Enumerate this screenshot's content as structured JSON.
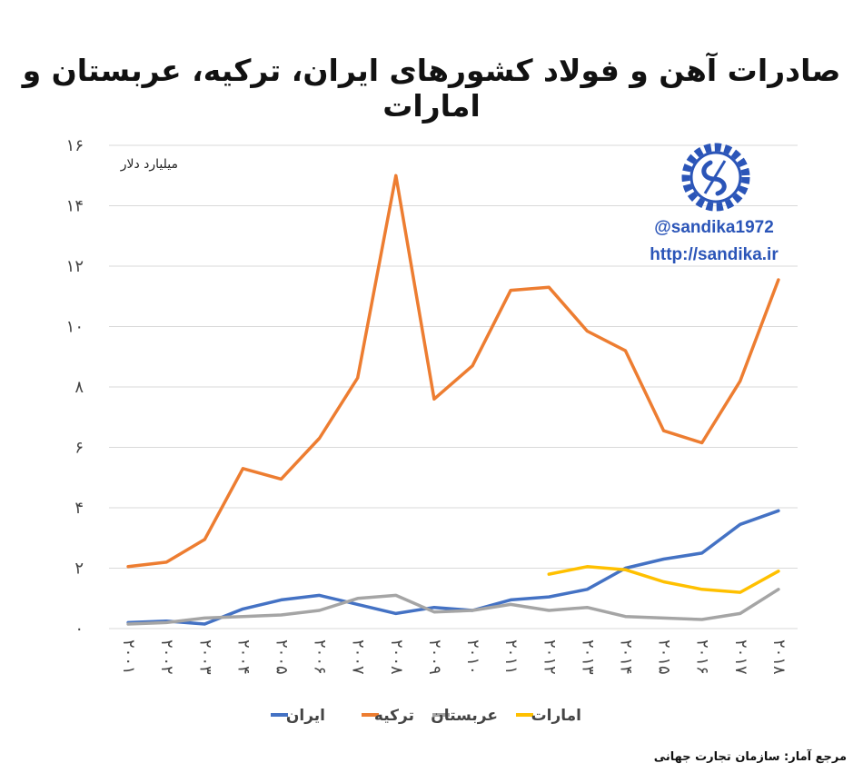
{
  "title": "صادرات آهن و فولاد کشورهای ایران، ترکیه، عربستان و امارات",
  "source": "مرجع آمار: سازمان تجارت جهانی",
  "watermark": {
    "handle": "@sandika1972",
    "url": "http://sandika.ir",
    "logo_icon": "sandika-logo-icon",
    "color": "#2b55b8"
  },
  "chart_data": {
    "type": "line",
    "ylabel": "میلیارد دلار",
    "ylim": [
      0,
      16
    ],
    "yticks": [
      0,
      2,
      4,
      6,
      8,
      10,
      12,
      14,
      16
    ],
    "ytick_labels": [
      "۰",
      "۲",
      "۴",
      "۶",
      "۸",
      "۱۰",
      "۱۲",
      "۱۴",
      "۱۶"
    ],
    "grid": true,
    "legend_position": "bottom",
    "x": [
      2001,
      2002,
      2003,
      2004,
      2005,
      2006,
      2007,
      2008,
      2009,
      2010,
      2011,
      2012,
      2013,
      2014,
      2015,
      2016,
      2017,
      2018
    ],
    "x_labels": [
      "۲۰۰۱",
      "۲۰۰۲",
      "۲۰۰۳",
      "۲۰۰۴",
      "۲۰۰۵",
      "۲۰۰۶",
      "۲۰۰۷",
      "۲۰۰۸",
      "۲۰۰۹",
      "۲۰۱۰",
      "۲۰۱۱",
      "۲۰۱۲",
      "۲۰۱۳",
      "۲۰۱۴",
      "۲۰۱۵",
      "۲۰۱۶",
      "۲۰۱۷",
      "۲۰۱۸"
    ],
    "series": [
      {
        "name": "ایران",
        "color": "#4472c4",
        "values": [
          0.2,
          0.25,
          0.15,
          0.65,
          0.95,
          1.1,
          0.8,
          0.5,
          0.7,
          0.6,
          0.95,
          1.05,
          1.3,
          2.0,
          2.3,
          2.5,
          3.45,
          3.9
        ]
      },
      {
        "name": "ترکیه",
        "color": "#ed7d31",
        "values": [
          2.05,
          2.2,
          2.95,
          5.3,
          4.95,
          6.3,
          8.3,
          15.0,
          7.6,
          8.7,
          11.2,
          11.3,
          9.85,
          9.2,
          6.55,
          6.15,
          8.2,
          11.55
        ]
      },
      {
        "name": "عربستان",
        "color": "#a5a5a5",
        "values": [
          0.15,
          0.2,
          0.35,
          0.4,
          0.45,
          0.6,
          1.0,
          1.1,
          0.55,
          0.6,
          0.8,
          0.6,
          0.7,
          0.4,
          0.35,
          0.3,
          0.5,
          1.3
        ]
      },
      {
        "name": "امارات",
        "color": "#ffc000",
        "values": [
          null,
          null,
          null,
          null,
          null,
          null,
          null,
          null,
          null,
          null,
          null,
          1.8,
          2.05,
          1.95,
          1.55,
          1.3,
          1.2,
          1.9
        ]
      }
    ]
  }
}
